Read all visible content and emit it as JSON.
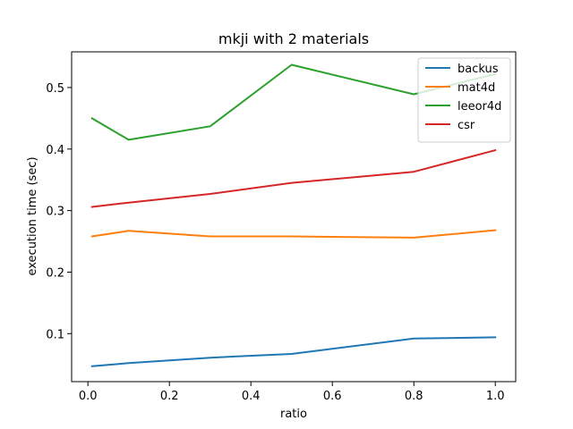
{
  "chart_data": {
    "type": "line",
    "title": "mkji with 2 materials",
    "xlabel": "ratio",
    "ylabel": "execution time (sec)",
    "xlim": [
      -0.04,
      1.05
    ],
    "ylim": [
      0.022,
      0.558
    ],
    "xticks": [
      0.0,
      0.2,
      0.4,
      0.6,
      0.8,
      1.0
    ],
    "xtick_labels": [
      "0.0",
      "0.2",
      "0.4",
      "0.6",
      "0.8",
      "1.0"
    ],
    "yticks": [
      0.1,
      0.2,
      0.3,
      0.4,
      0.5
    ],
    "ytick_labels": [
      "0.1",
      "0.2",
      "0.3",
      "0.4",
      "0.5"
    ],
    "grid": false,
    "legend_position": "top-right",
    "x": [
      0.01,
      0.1,
      0.3,
      0.5,
      0.8,
      1.0
    ],
    "series": [
      {
        "name": "backus",
        "color": "#1f77b4",
        "values": [
          0.047,
          0.052,
          0.061,
          0.067,
          0.092,
          0.094
        ]
      },
      {
        "name": "mat4d",
        "color": "#ff7f0e",
        "values": [
          0.258,
          0.267,
          0.258,
          0.258,
          0.256,
          0.268
        ]
      },
      {
        "name": "leeor4d",
        "color": "#2ca02c",
        "values": [
          0.45,
          0.415,
          0.437,
          0.537,
          0.489,
          0.522
        ]
      },
      {
        "name": "csr",
        "color": "#d62728",
        "values": [
          0.306,
          0.313,
          0.327,
          0.345,
          0.363,
          0.398
        ]
      }
    ]
  }
}
